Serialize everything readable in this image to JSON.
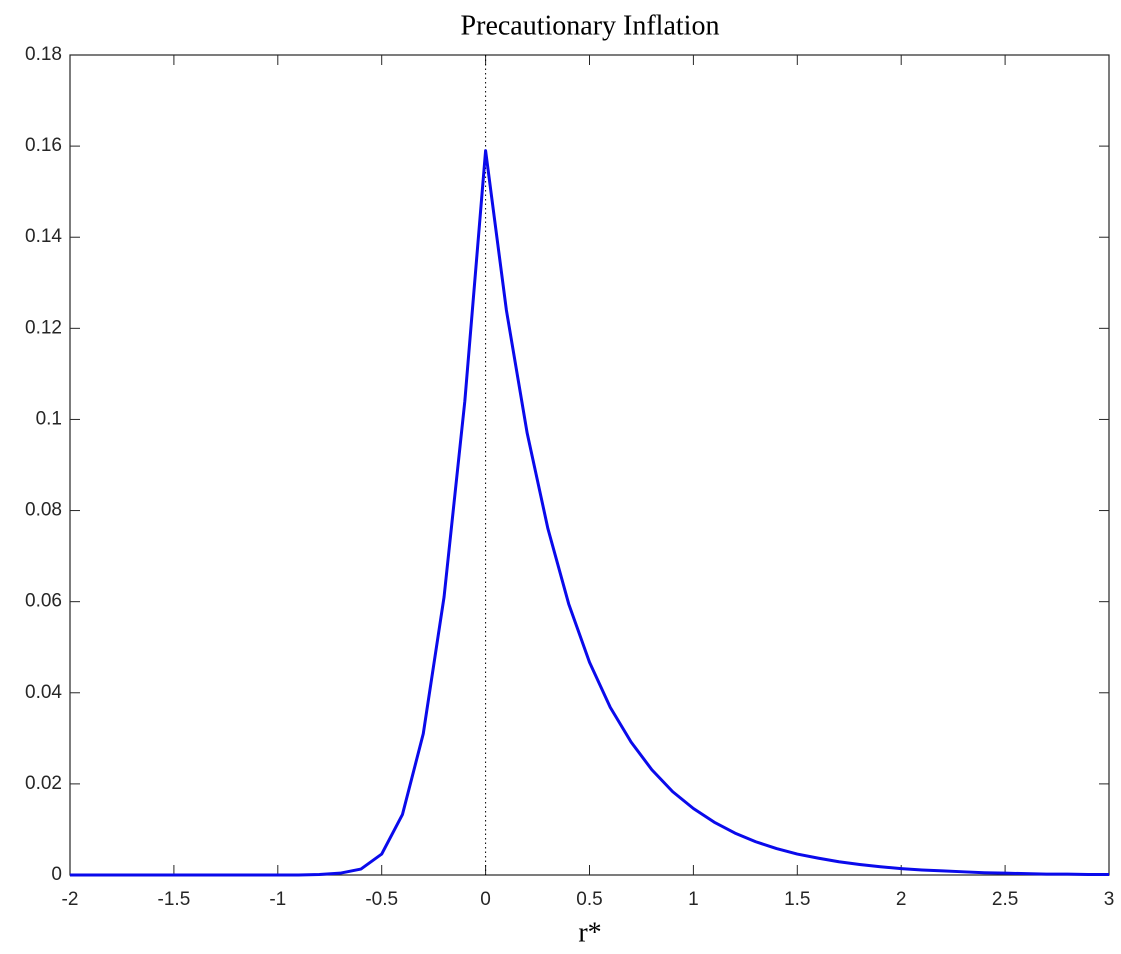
{
  "chart_data": {
    "type": "line",
    "title": "Precautionary Inflation",
    "x_label": "r*",
    "x": [
      -2,
      -1.9,
      -1.8,
      -1.7,
      -1.6,
      -1.5,
      -1.4,
      -1.3,
      -1.2,
      -1.1,
      -1,
      -0.9,
      -0.8,
      -0.7,
      -0.6,
      -0.5,
      -0.4,
      -0.3,
      -0.2,
      -0.1,
      0,
      0.1,
      0.2,
      0.3,
      0.4,
      0.5,
      0.6,
      0.7,
      0.8,
      0.9,
      1,
      1.1,
      1.2,
      1.3,
      1.4,
      1.5,
      1.6,
      1.7,
      1.8,
      1.9,
      2,
      2.1,
      2.2,
      2.3,
      2.4,
      2.5,
      2.6,
      2.7,
      2.8,
      2.9,
      3
    ],
    "series": [
      {
        "color": "#0a0aeb",
        "values": [
          0,
          0,
          0,
          0,
          0,
          0,
          0,
          0,
          0,
          0,
          0,
          0,
          0.0001,
          0.0004,
          0.0013,
          0.0046,
          0.0133,
          0.031,
          0.061,
          0.104,
          0.159,
          0.124,
          0.097,
          0.076,
          0.0595,
          0.0467,
          0.0368,
          0.0292,
          0.0231,
          0.0183,
          0.0146,
          0.0116,
          0.0092,
          0.0073,
          0.0058,
          0.0046,
          0.0037,
          0.0029,
          0.0023,
          0.0018,
          0.0014,
          0.0011,
          0.0009,
          0.0007,
          0.0005,
          0.0004,
          0.0003,
          0.0002,
          0.0002,
          0.0001,
          0.0001
        ]
      }
    ],
    "xlim": [
      -2,
      3
    ],
    "xticks": [
      -2,
      -1.5,
      -1,
      -0.5,
      0,
      0.5,
      1,
      1.5,
      2,
      2.5,
      3
    ],
    "ylim": [
      0,
      0.18
    ],
    "yticks": [
      0,
      0.02,
      0.04,
      0.06,
      0.08,
      0.1,
      0.12,
      0.14,
      0.16,
      0.18
    ],
    "vline": 0,
    "grid": false
  }
}
